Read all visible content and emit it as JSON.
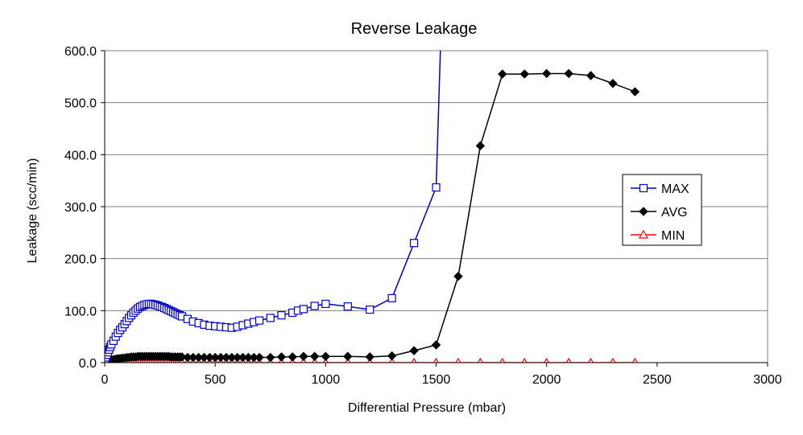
{
  "chart_data": {
    "type": "line",
    "title": "Reverse Leakage",
    "xlabel": "Differential Pressure (mbar)",
    "ylabel": "Leakage (scc/min)",
    "xlim": [
      0,
      3000
    ],
    "ylim": [
      0,
      600
    ],
    "x_ticks": [
      "0",
      "500",
      "1000",
      "1500",
      "2000",
      "2500",
      "3000"
    ],
    "y_ticks": [
      "0.0",
      "100.0",
      "200.0",
      "300.0",
      "400.0",
      "500.0",
      "600.0"
    ],
    "grid": "horizontal",
    "legend_position": "right",
    "series": [
      {
        "name": "MAX",
        "color": "#0000cc",
        "marker": "square-open",
        "points": [
          [
            0,
            5
          ],
          [
            5,
            10
          ],
          [
            10,
            15
          ],
          [
            15,
            20
          ],
          [
            20,
            25
          ],
          [
            25,
            30
          ],
          [
            30,
            35
          ],
          [
            40,
            42
          ],
          [
            50,
            50
          ],
          [
            60,
            57
          ],
          [
            70,
            63
          ],
          [
            80,
            68
          ],
          [
            90,
            74
          ],
          [
            100,
            80
          ],
          [
            110,
            86
          ],
          [
            120,
            91
          ],
          [
            130,
            96
          ],
          [
            140,
            100
          ],
          [
            150,
            104
          ],
          [
            160,
            107
          ],
          [
            170,
            109
          ],
          [
            180,
            111
          ],
          [
            190,
            112
          ],
          [
            200,
            113
          ],
          [
            210,
            113
          ],
          [
            220,
            112
          ],
          [
            230,
            111
          ],
          [
            240,
            110
          ],
          [
            250,
            108
          ],
          [
            260,
            107
          ],
          [
            270,
            105
          ],
          [
            280,
            103
          ],
          [
            290,
            101
          ],
          [
            300,
            99
          ],
          [
            310,
            97
          ],
          [
            320,
            95
          ],
          [
            330,
            93
          ],
          [
            340,
            91
          ],
          [
            350,
            89
          ],
          [
            375,
            84
          ],
          [
            400,
            79
          ],
          [
            425,
            76
          ],
          [
            450,
            73
          ],
          [
            475,
            71
          ],
          [
            500,
            70
          ],
          [
            525,
            69
          ],
          [
            550,
            68
          ],
          [
            575,
            67
          ],
          [
            600,
            69
          ],
          [
            625,
            72
          ],
          [
            650,
            75
          ],
          [
            675,
            78
          ],
          [
            700,
            81
          ],
          [
            750,
            86
          ],
          [
            800,
            91
          ],
          [
            850,
            96
          ],
          [
            875,
            100
          ],
          [
            900,
            103
          ],
          [
            950,
            109
          ],
          [
            1000,
            113
          ],
          [
            1100,
            108
          ],
          [
            1200,
            102
          ],
          [
            1300,
            124
          ],
          [
            1400,
            230
          ],
          [
            1500,
            337
          ],
          [
            1520,
            610
          ]
        ]
      },
      {
        "name": "AVG",
        "color": "#000000",
        "marker": "diamond-filled",
        "points": [
          [
            0,
            2
          ],
          [
            10,
            3
          ],
          [
            20,
            4
          ],
          [
            30,
            5
          ],
          [
            40,
            6
          ],
          [
            50,
            7
          ],
          [
            60,
            8
          ],
          [
            70,
            8
          ],
          [
            80,
            9
          ],
          [
            90,
            9
          ],
          [
            100,
            10
          ],
          [
            110,
            10
          ],
          [
            120,
            11
          ],
          [
            130,
            11
          ],
          [
            140,
            11
          ],
          [
            150,
            12
          ],
          [
            160,
            12
          ],
          [
            170,
            12
          ],
          [
            180,
            12
          ],
          [
            190,
            12
          ],
          [
            200,
            12
          ],
          [
            210,
            12
          ],
          [
            220,
            12
          ],
          [
            230,
            12
          ],
          [
            240,
            12
          ],
          [
            250,
            12
          ],
          [
            260,
            12
          ],
          [
            270,
            12
          ],
          [
            280,
            12
          ],
          [
            290,
            12
          ],
          [
            300,
            11
          ],
          [
            310,
            11
          ],
          [
            320,
            11
          ],
          [
            330,
            11
          ],
          [
            340,
            11
          ],
          [
            350,
            11
          ],
          [
            375,
            10
          ],
          [
            400,
            10
          ],
          [
            425,
            10
          ],
          [
            450,
            10
          ],
          [
            475,
            10
          ],
          [
            500,
            10
          ],
          [
            525,
            10
          ],
          [
            550,
            10
          ],
          [
            575,
            10
          ],
          [
            600,
            10
          ],
          [
            625,
            10
          ],
          [
            650,
            10
          ],
          [
            675,
            10
          ],
          [
            700,
            10
          ],
          [
            750,
            10
          ],
          [
            800,
            11
          ],
          [
            850,
            11
          ],
          [
            900,
            12
          ],
          [
            950,
            12
          ],
          [
            1000,
            12
          ],
          [
            1100,
            12
          ],
          [
            1200,
            11
          ],
          [
            1300,
            13
          ],
          [
            1400,
            23
          ],
          [
            1500,
            34
          ],
          [
            1600,
            166
          ],
          [
            1700,
            417
          ],
          [
            1800,
            555
          ],
          [
            1900,
            555
          ],
          [
            2000,
            556
          ],
          [
            2100,
            556
          ],
          [
            2200,
            552
          ],
          [
            2300,
            537
          ],
          [
            2400,
            521
          ]
        ]
      },
      {
        "name": "MIN",
        "color": "#ff0000",
        "marker": "triangle-open",
        "points": [
          [
            0,
            0
          ],
          [
            10,
            0
          ],
          [
            20,
            0
          ],
          [
            30,
            0
          ],
          [
            40,
            0
          ],
          [
            50,
            0
          ],
          [
            60,
            0
          ],
          [
            70,
            0
          ],
          [
            80,
            0
          ],
          [
            90,
            0
          ],
          [
            100,
            0
          ],
          [
            110,
            0
          ],
          [
            120,
            0
          ],
          [
            130,
            0
          ],
          [
            140,
            0
          ],
          [
            150,
            0
          ],
          [
            160,
            0
          ],
          [
            170,
            0
          ],
          [
            180,
            0
          ],
          [
            190,
            0
          ],
          [
            200,
            0
          ],
          [
            210,
            0
          ],
          [
            220,
            0
          ],
          [
            230,
            0
          ],
          [
            240,
            0
          ],
          [
            250,
            0
          ],
          [
            260,
            0
          ],
          [
            270,
            0
          ],
          [
            280,
            0
          ],
          [
            290,
            0
          ],
          [
            300,
            0
          ],
          [
            310,
            0
          ],
          [
            320,
            0
          ],
          [
            330,
            0
          ],
          [
            340,
            0
          ],
          [
            350,
            0
          ],
          [
            375,
            0
          ],
          [
            400,
            0
          ],
          [
            425,
            0
          ],
          [
            450,
            0
          ],
          [
            475,
            0
          ],
          [
            500,
            0
          ],
          [
            525,
            0
          ],
          [
            550,
            0
          ],
          [
            575,
            0
          ],
          [
            600,
            0
          ],
          [
            625,
            0
          ],
          [
            650,
            0
          ],
          [
            675,
            0
          ],
          [
            700,
            0
          ],
          [
            750,
            0
          ],
          [
            800,
            0
          ],
          [
            850,
            0
          ],
          [
            900,
            0
          ],
          [
            950,
            0
          ],
          [
            1000,
            0
          ],
          [
            1100,
            0
          ],
          [
            1200,
            0
          ],
          [
            1300,
            0
          ],
          [
            1400,
            0
          ],
          [
            1500,
            0
          ],
          [
            1600,
            0
          ],
          [
            1700,
            0
          ],
          [
            1800,
            0
          ],
          [
            1900,
            0
          ],
          [
            2000,
            0
          ],
          [
            2100,
            0
          ],
          [
            2200,
            0
          ],
          [
            2300,
            0
          ],
          [
            2400,
            0
          ]
        ]
      }
    ]
  }
}
